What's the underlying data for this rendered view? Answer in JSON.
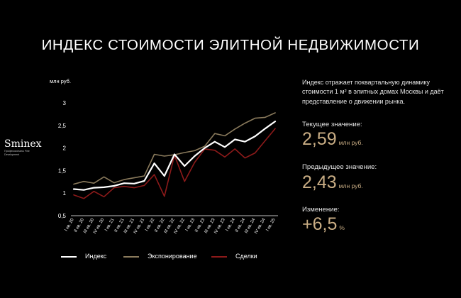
{
  "title": "ИНДЕКС СТОИМОСТИ ЭЛИТНОЙ НЕДВИЖИМОСТИ",
  "brand": {
    "name": "Sminex",
    "tagline": "Профессионалы Fine Development"
  },
  "info": {
    "description": "Индекс отражает поквартальную динамику стоимости 1 м² в элитных домах Москвы и даёт представление о движении рынка.",
    "current_label": "Текущее значение:",
    "current_value": "2,59",
    "current_unit": "млн руб.",
    "previous_label": "Предыдущее значение:",
    "previous_value": "2,43",
    "previous_unit": "млн руб.",
    "change_label": "Изменение:",
    "change_value": "+6,5",
    "change_unit": "%"
  },
  "colors": {
    "background": "#000000",
    "index": "#ffffff",
    "exposure": "#8a7a5c",
    "deals": "#8c1a1a",
    "accent": "#c9ad84"
  },
  "chart_data": {
    "type": "line",
    "ylabel": "млн руб.",
    "ylim": [
      0.5,
      3
    ],
    "yticks": [
      "0,5",
      "1",
      "1,5",
      "2",
      "2,5",
      "3"
    ],
    "grid": false,
    "legend_position": "bottom",
    "categories": [
      "I кв. 20",
      "II кв. 20",
      "III кв. 20",
      "IV кв. 20",
      "I кв. 21",
      "II кв. 21",
      "III кв. 21",
      "IV кв. 21",
      "I кв. 22",
      "II кв. 22",
      "III кв. 22",
      "IV кв. 22",
      "I кв. 23",
      "II кв. 23",
      "III кв. 23",
      "IV кв. 23",
      "I кв. 24",
      "II кв. 24",
      "III кв. 24",
      "IV кв. 24",
      "I кв. 25"
    ],
    "series": [
      {
        "name": "Индекс",
        "color": "#ffffff",
        "width": 2.2,
        "values": [
          1.09,
          1.07,
          1.12,
          1.13,
          1.16,
          1.22,
          1.21,
          1.27,
          1.66,
          1.38,
          1.86,
          1.6,
          1.82,
          2.0,
          2.14,
          2.02,
          2.19,
          2.14,
          2.26,
          2.43,
          2.59
        ]
      },
      {
        "name": "Экспонирование",
        "color": "#8a7a5c",
        "width": 1.6,
        "values": [
          1.2,
          1.26,
          1.22,
          1.36,
          1.23,
          1.3,
          1.34,
          1.38,
          1.86,
          1.82,
          1.85,
          1.9,
          1.94,
          2.04,
          2.32,
          2.27,
          2.42,
          2.55,
          2.66,
          2.68,
          2.78
        ]
      },
      {
        "name": "Сделки",
        "color": "#8c1a1a",
        "width": 1.6,
        "values": [
          0.96,
          0.88,
          1.04,
          0.92,
          1.12,
          1.15,
          1.12,
          1.17,
          1.41,
          0.93,
          1.84,
          1.26,
          1.68,
          1.98,
          1.95,
          1.8,
          1.98,
          1.78,
          1.89,
          2.16,
          2.43
        ]
      }
    ]
  }
}
